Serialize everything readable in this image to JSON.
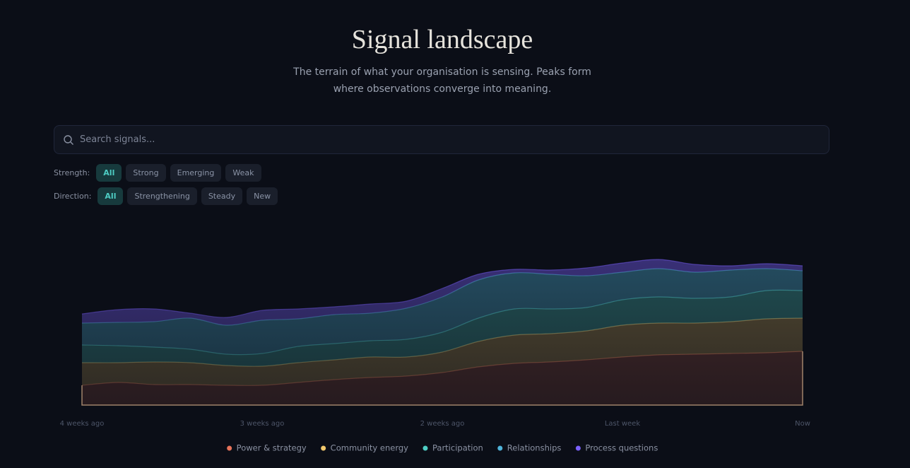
{
  "header": {
    "title": "Signal landscape",
    "subtitle": "The terrain of what your organisation is sensing. Peaks form where observations converge into meaning."
  },
  "search": {
    "placeholder": "Search signals..."
  },
  "filters": [
    {
      "label": "Strength:",
      "options": [
        "All",
        "Strong",
        "Emerging",
        "Weak"
      ]
    },
    {
      "label": "Direction:",
      "options": [
        "All",
        "Strengthening",
        "Steady",
        "New"
      ]
    }
  ],
  "chart_data": {
    "type": "stacked_area",
    "categories": [
      "4 weeks ago",
      null,
      null,
      null,
      null,
      "3 weeks ago",
      null,
      null,
      null,
      null,
      "2 weeks ago",
      null,
      null,
      null,
      null,
      "Last week",
      null,
      null,
      null,
      null,
      "Now"
    ],
    "ylim": [
      0,
      230
    ],
    "series": [
      {
        "name": "Power & strategy",
        "color": "#e8735a",
        "values": [
          28,
          32,
          29,
          29,
          28,
          28,
          32,
          36,
          39,
          41,
          46,
          54,
          59,
          61,
          64,
          68,
          71,
          72,
          73,
          74,
          76
        ]
      },
      {
        "name": "Community energy",
        "color": "#f2c96d",
        "values": [
          32,
          28,
          32,
          31,
          28,
          27,
          28,
          28,
          29,
          27,
          29,
          36,
          40,
          40,
          41,
          45,
          45,
          44,
          45,
          48,
          47
        ]
      },
      {
        "name": "Participation",
        "color": "#4ecdc4",
        "values": [
          25,
          24,
          21,
          19,
          16,
          18,
          23,
          23,
          23,
          25,
          28,
          33,
          37,
          35,
          33,
          36,
          37,
          35,
          35,
          40,
          39
        ]
      },
      {
        "name": "Relationships",
        "color": "#4fb3d9",
        "values": [
          31,
          33,
          36,
          44,
          41,
          47,
          39,
          41,
          39,
          44,
          50,
          54,
          51,
          49,
          45,
          39,
          40,
          37,
          38,
          31,
          28
        ]
      },
      {
        "name": "Process questions",
        "color": "#7b61ff",
        "values": [
          13,
          18,
          18,
          7,
          11,
          14,
          14,
          11,
          13,
          10,
          12,
          8,
          5,
          6,
          11,
          13,
          13,
          11,
          6,
          7,
          7
        ]
      }
    ]
  }
}
